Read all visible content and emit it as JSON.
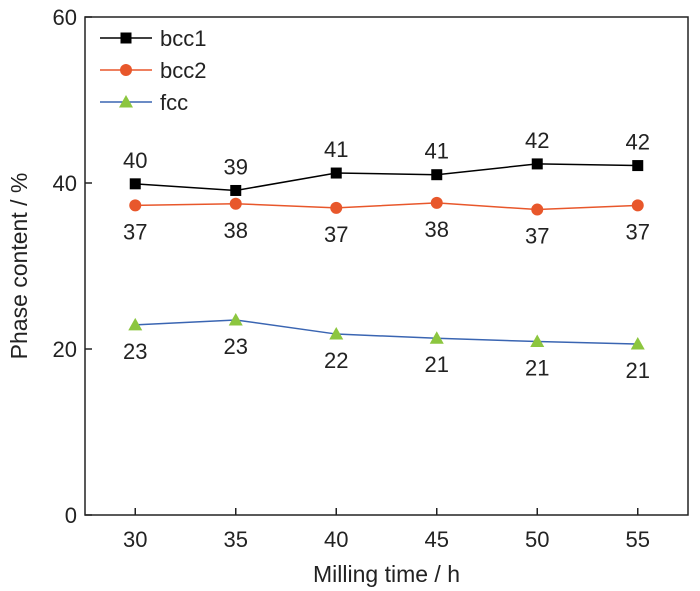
{
  "chart_data": {
    "type": "line",
    "title": "",
    "xlabel": "Milling time / h",
    "ylabel": "Phase content / %",
    "x": [
      30,
      35,
      40,
      45,
      50,
      55
    ],
    "xlim": [
      27.5,
      57.5
    ],
    "ylim": [
      0,
      60
    ],
    "xticks": [
      30,
      35,
      40,
      45,
      50,
      55
    ],
    "yticks": [
      0,
      20,
      40,
      60
    ],
    "grid": false,
    "legend_position": "top-left",
    "series": [
      {
        "name": "bcc1",
        "values": [
          39.9,
          39.1,
          41.2,
          41.0,
          42.3,
          42.1
        ],
        "labels": [
          "40",
          "39",
          "41",
          "41",
          "42",
          "42"
        ],
        "label_position": "above",
        "color": "#000000",
        "marker": "square"
      },
      {
        "name": "bcc2",
        "values": [
          37.3,
          37.5,
          37.0,
          37.6,
          36.8,
          37.3
        ],
        "labels": [
          "37",
          "38",
          "37",
          "38",
          "37",
          "37"
        ],
        "label_position": "below",
        "color": "#e8572b",
        "line_color": "#e8572b",
        "marker": "circle"
      },
      {
        "name": "fcc",
        "values": [
          22.9,
          23.5,
          21.8,
          21.3,
          20.9,
          20.6
        ],
        "labels": [
          "23",
          "23",
          "22",
          "21",
          "21",
          "21"
        ],
        "label_position": "below",
        "color": "#8cc63f",
        "line_color": "#3a65b2",
        "marker": "triangle"
      }
    ]
  }
}
